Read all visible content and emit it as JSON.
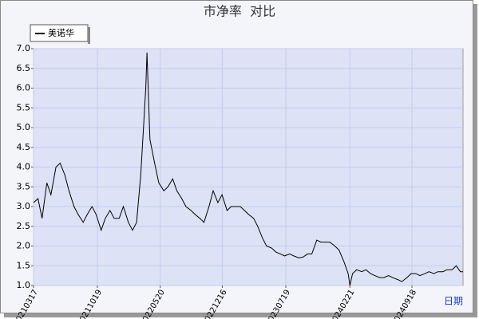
{
  "chart_data": {
    "type": "line",
    "title": "市净率  对比",
    "xlabel": "日期",
    "x": [
      "20210317",
      "20210401",
      "20210415",
      "20210501",
      "20210515",
      "20210601",
      "20210615",
      "20210701",
      "20210715",
      "20210801",
      "20210815",
      "20210901",
      "20210915",
      "20211001",
      "20211015",
      "20211101",
      "20211115",
      "20211201",
      "20211215",
      "20220101",
      "20220115",
      "20220201",
      "20220215",
      "20220301",
      "20220315",
      "20220401",
      "20220405",
      "20220415",
      "20220501",
      "20220515",
      "20220601",
      "20220615",
      "20220701",
      "20220715",
      "20220801",
      "20220815",
      "20220901",
      "20220915",
      "20221001",
      "20221015",
      "20221101",
      "20221115",
      "20221201",
      "20221215",
      "20230101",
      "20230115",
      "20230201",
      "20230215",
      "20230301",
      "20230315",
      "20230401",
      "20230415",
      "20230501",
      "20230515",
      "20230601",
      "20230615",
      "20230701",
      "20230715",
      "20230801",
      "20230815",
      "20230901",
      "20230915",
      "20231001",
      "20231015",
      "20231101",
      "20231115",
      "20231201",
      "20231215",
      "20240101",
      "20240115",
      "20240201",
      "20240215",
      "20240221",
      "20240301",
      "20240315",
      "20240401",
      "20240415",
      "20240501",
      "20240515",
      "20240601",
      "20240615",
      "20240701",
      "20240715",
      "20240801",
      "20240815",
      "20240901",
      "20240915",
      "20241001",
      "20241015",
      "20241101",
      "20241115",
      "20241201",
      "20241215",
      "20250101",
      "20250115",
      "20250201",
      "20250215",
      "20250301",
      "20250310"
    ],
    "series": [
      {
        "name": "美诺华",
        "color": "#000000",
        "values": [
          3.1,
          3.2,
          2.7,
          3.6,
          3.3,
          4.0,
          4.1,
          3.8,
          3.4,
          3.0,
          2.8,
          2.6,
          2.8,
          3.0,
          2.8,
          2.4,
          2.7,
          2.9,
          2.7,
          2.7,
          3.0,
          2.6,
          2.4,
          2.6,
          3.8,
          6.0,
          6.9,
          4.7,
          4.1,
          3.6,
          3.4,
          3.5,
          3.7,
          3.4,
          3.2,
          3.0,
          2.9,
          2.8,
          2.7,
          2.6,
          3.0,
          3.4,
          3.1,
          3.3,
          2.9,
          3.0,
          3.0,
          3.0,
          2.9,
          2.8,
          2.7,
          2.5,
          2.2,
          2.0,
          1.95,
          1.85,
          1.8,
          1.75,
          1.8,
          1.75,
          1.7,
          1.72,
          1.8,
          1.8,
          2.15,
          2.1,
          2.1,
          2.1,
          2.0,
          1.9,
          1.6,
          1.3,
          1.0,
          1.3,
          1.4,
          1.35,
          1.4,
          1.3,
          1.25,
          1.2,
          1.2,
          1.25,
          1.2,
          1.15,
          1.1,
          1.2,
          1.3,
          1.3,
          1.25,
          1.3,
          1.35,
          1.3,
          1.35,
          1.35,
          1.4,
          1.4,
          1.5,
          1.35,
          1.35
        ]
      }
    ],
    "xlim": [
      "20210317",
      "20250310"
    ],
    "xticks": [
      "20210317",
      "20211019",
      "20220520",
      "20221216",
      "20230719",
      "20240221",
      "20240918"
    ],
    "ylim": [
      1,
      7
    ],
    "yticks": [
      {
        "value": 1,
        "label": "1.0"
      },
      1.5,
      {
        "value": 2,
        "label": "2.0"
      },
      2.5,
      {
        "value": 3,
        "label": "3.0"
      },
      3.5,
      {
        "value": 4,
        "label": "4.0"
      },
      4.5,
      {
        "value": 5,
        "label": "5.0"
      },
      5.5,
      {
        "value": 6,
        "label": "6.0"
      },
      6.5,
      {
        "value": 7,
        "label": "7.0"
      }
    ],
    "grid": true
  }
}
